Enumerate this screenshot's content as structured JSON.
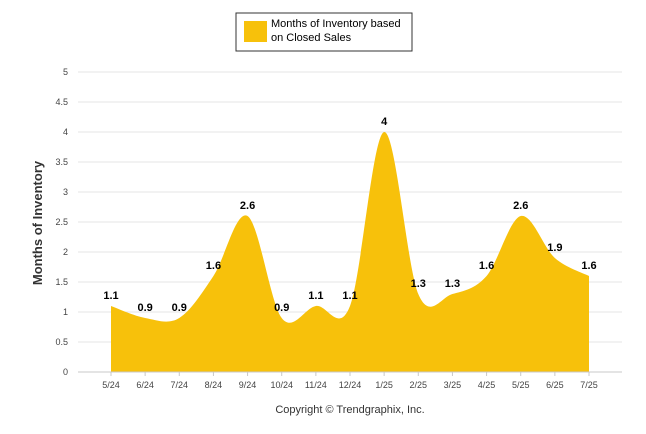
{
  "chart_data": {
    "type": "area",
    "categories": [
      "5/24",
      "6/24",
      "7/24",
      "8/24",
      "9/24",
      "10/24",
      "11/24",
      "12/24",
      "1/25",
      "2/25",
      "3/25",
      "4/25",
      "5/25",
      "6/25",
      "7/25"
    ],
    "series": [
      {
        "name": "Months of Inventory based on Closed Sales",
        "values": [
          1.1,
          0.9,
          0.9,
          1.6,
          2.6,
          0.9,
          1.1,
          1.1,
          4,
          1.3,
          1.3,
          1.6,
          2.6,
          1.9,
          1.6
        ],
        "color": "#f7c10b"
      }
    ],
    "ylabel": "Months of Inventory",
    "xlabel": "",
    "ylim": [
      0,
      5
    ],
    "yticks": [
      0,
      0.5,
      1,
      1.5,
      2,
      2.5,
      3,
      3.5,
      4,
      4.5,
      5
    ],
    "ytick_labels": [
      "0",
      "0.5",
      "1",
      "1.5",
      "2",
      "2.5",
      "3",
      "3.5",
      "4",
      "4.5",
      "5"
    ],
    "grid": true,
    "data_labels": [
      "1.1",
      "0.9",
      "0.9",
      "1.6",
      "2.6",
      "0.9",
      "1.1",
      "1.1",
      "4",
      "1.3",
      "1.3",
      "1.6",
      "2.6",
      "1.9",
      "1.6"
    ],
    "legend": {
      "position": "top-center",
      "label_line1": "Months of Inventory based",
      "label_line2": "on Closed Sales"
    }
  },
  "footer": {
    "copyright": "Copyright © Trendgraphix, Inc."
  }
}
